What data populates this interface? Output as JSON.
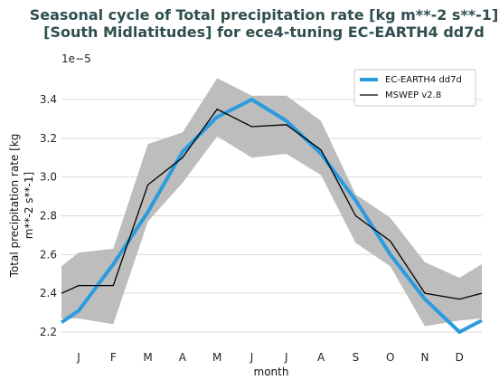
{
  "chart_data": {
    "type": "line",
    "title_line1": "Seasonal cycle of Total precipitation rate [kg m**-2 s**-1]",
    "title_line2": "[South Midlatitudes] for ece4-tuning EC-EARTH4 dd7d",
    "xlabel": "month",
    "ylabel_line1": "Total precipitation rate [kg",
    "ylabel_line2": "m**-2 s**-1]",
    "offset_text": "1e−5",
    "categories": [
      "J",
      "F",
      "M",
      "A",
      "M",
      "J",
      "J",
      "A",
      "S",
      "O",
      "N",
      "D"
    ],
    "yticks": [
      "2.2",
      "2.4",
      "2.6",
      "2.8",
      "3.0",
      "3.2",
      "3.4"
    ],
    "ytick_values": [
      2.2,
      2.4,
      2.6,
      2.8,
      3.0,
      3.2,
      3.4
    ],
    "ylim": [
      2.15,
      3.55
    ],
    "grid": true,
    "legend_position": "top-right",
    "series": [
      {
        "name": "EC-EARTH4 dd7d",
        "color": "#2b9be0",
        "values_edge_start": 2.25,
        "values": [
          2.31,
          2.55,
          2.82,
          3.13,
          3.31,
          3.4,
          3.29,
          3.12,
          2.88,
          2.6,
          2.37,
          2.2
        ],
        "values_edge_end": 2.26
      },
      {
        "name": "MSWEP v2.8",
        "color": "#000000",
        "values_edge_start": 2.4,
        "values": [
          2.44,
          2.44,
          2.96,
          3.1,
          3.35,
          3.26,
          3.27,
          3.14,
          2.8,
          2.67,
          2.4,
          2.37
        ],
        "values_edge_end": 2.4
      }
    ],
    "band": {
      "color": "#bdbdbd",
      "upper_edge_start": 2.54,
      "upper": [
        2.61,
        2.63,
        3.17,
        3.23,
        3.51,
        3.42,
        3.42,
        3.29,
        2.91,
        2.79,
        2.56,
        2.48
      ],
      "upper_edge_end": 2.55,
      "lower_edge_start": 2.27,
      "lower": [
        2.27,
        2.24,
        2.77,
        2.97,
        3.21,
        3.1,
        3.12,
        3.01,
        2.66,
        2.54,
        2.23,
        2.26
      ],
      "lower_edge_end": 2.27
    }
  }
}
